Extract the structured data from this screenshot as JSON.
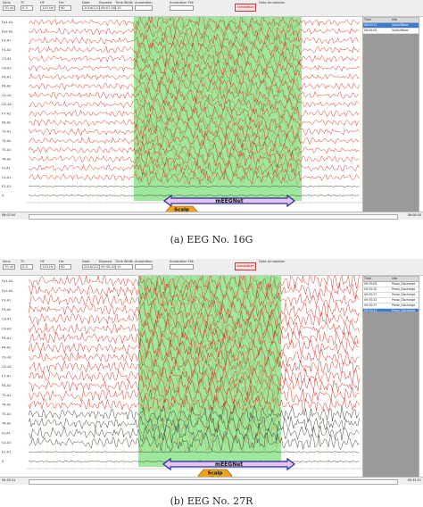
{
  "panels": [
    {
      "caption": "(a) EEG No. 16G",
      "toolbar": {
        "fields": [
          {
            "label": "Sens",
            "value": "70 uV"
          },
          {
            "label": "TC",
            "value": "0.3"
          },
          {
            "label": "HF",
            "value": "120 Hz"
          },
          {
            "label": "Fre",
            "value": "60"
          },
          {
            "label": "Date",
            "value": "2016/12/19"
          },
          {
            "label": "Elapsed",
            "value": "08:07:00"
          },
          {
            "label": "Time Width",
            "value": "10"
          },
          {
            "label": "Annotation",
            "value": ""
          },
          {
            "label": "Annotation File",
            "value": ""
          }
        ],
        "button": "Annotation",
        "data_annotation": "Data Annotation"
      },
      "channels": [
        "Fp1-A1",
        "Fp2-A2",
        "F3-A1",
        "F4-A2",
        "C3-A1",
        "C4-A2",
        "P3-A1",
        "P4-A2",
        "O1-A1",
        "O2-A2",
        "F7-A1",
        "F8-A2",
        "T3-A1",
        "T4-A2",
        "T5-A1",
        "T6-A2",
        "Fz-A1",
        "Cz-A1",
        "E1-X1",
        "X"
      ],
      "side": {
        "headers": [
          "Time",
          "Info"
        ],
        "rows": [
          {
            "time": "08:05:51",
            "info": "Spike/Wave",
            "selected": true
          },
          {
            "time": "08:06:00",
            "info": "Spike/Wave",
            "selected": false
          }
        ]
      },
      "bottom": {
        "left": "08:07:00",
        "right": "08:08:00"
      },
      "labels": {
        "meegnet": "mEEGNet",
        "scalp_net": "Scalp\nNet"
      }
    },
    {
      "caption": "(b) EEG No. 27R",
      "toolbar": {
        "fields": [
          {
            "label": "Sens",
            "value": "70 uV"
          },
          {
            "label": "TC",
            "value": "0.3"
          },
          {
            "label": "HF",
            "value": "120 Hz"
          },
          {
            "label": "Fre",
            "value": "60"
          },
          {
            "label": "Date",
            "value": "2016/12/19"
          },
          {
            "label": "Elapsed",
            "value": "09:35:41"
          },
          {
            "label": "Time Width",
            "value": "10"
          },
          {
            "label": "Annotation",
            "value": ""
          },
          {
            "label": "Annotation File",
            "value": ""
          }
        ],
        "button": "Annotation",
        "data_annotation": "Data Annotation"
      },
      "channels": [
        "Fp1-A1",
        "Fp2-A2",
        "F3-A1",
        "F4-A2",
        "C3-A1",
        "C4-A2",
        "P3-A1",
        "P4-A2",
        "O1-A1",
        "O2-A2",
        "F7-A1",
        "F8-A2",
        "T3-A1",
        "T4-A2",
        "T5-A1",
        "T6-A2",
        "Fz-A1",
        "Cz-A1",
        "E1-X1",
        "X"
      ],
      "side": {
        "headers": [
          "Time",
          "Info"
        ],
        "rows": [
          {
            "time": "09:35:09",
            "info": "Parox_Discharge",
            "selected": false
          },
          {
            "time": "09:35:20",
            "info": "Parox_Discharge",
            "selected": false
          },
          {
            "time": "09:35:27",
            "info": "Parox_Discharge",
            "selected": false
          },
          {
            "time": "09:35:32",
            "info": "Parox_Discharge",
            "selected": false
          },
          {
            "time": "09:35:37",
            "info": "Parox_Discharge",
            "selected": false
          },
          {
            "time": "09:35:41",
            "info": "Parox_Discharge",
            "selected": true
          }
        ]
      },
      "bottom": {
        "left": "09:35:31",
        "right": "09:35:51"
      },
      "labels": {
        "meegnet": "mEEGNet",
        "scalp_net": "Scalp\nNet"
      }
    }
  ],
  "colors": {
    "wave_red": "#d62020",
    "wave_green_zone": "#b08a30",
    "highlight": "#7fe27f",
    "meegnet_arrow": "#2a2aa0",
    "meegnet_fill": "#e7c4ee",
    "scalp_fill": "#f0a21a"
  }
}
